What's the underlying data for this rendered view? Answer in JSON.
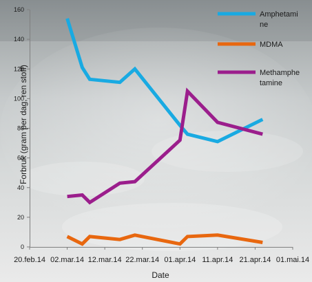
{
  "chart_data": {
    "type": "line",
    "xlabel": "Date",
    "ylabel": "Forbruk (gram per dag, ren stoff)",
    "x_ticks": [
      "20.feb.14",
      "02.mar.14",
      "12.mar.14",
      "22.mar.14",
      "01.apr.14",
      "11.apr.14",
      "21.apr.14",
      "01.mai.14"
    ],
    "y_ticks": [
      0,
      20,
      40,
      60,
      80,
      100,
      120,
      140,
      160
    ],
    "ylim": [
      0,
      160
    ],
    "grid": false,
    "legend_position": "top-right",
    "series": [
      {
        "name": "Amphetamine",
        "legend_lines": [
          "Amphetami",
          "ne"
        ],
        "color": "#19aae2",
        "points": [
          {
            "x": "2014-03-02",
            "y": 154
          },
          {
            "x": "2014-03-06",
            "y": 121
          },
          {
            "x": "2014-03-08",
            "y": 113
          },
          {
            "x": "2014-03-16",
            "y": 111
          },
          {
            "x": "2014-03-20",
            "y": 120
          },
          {
            "x": "2014-04-01",
            "y": 82
          },
          {
            "x": "2014-04-03",
            "y": 76
          },
          {
            "x": "2014-04-11",
            "y": 71
          },
          {
            "x": "2014-04-23",
            "y": 86
          }
        ]
      },
      {
        "name": "MDMA",
        "legend_lines": [
          "MDMA"
        ],
        "color": "#e8670f",
        "points": [
          {
            "x": "2014-03-02",
            "y": 7
          },
          {
            "x": "2014-03-06",
            "y": 2
          },
          {
            "x": "2014-03-08",
            "y": 7
          },
          {
            "x": "2014-03-16",
            "y": 5
          },
          {
            "x": "2014-03-20",
            "y": 8
          },
          {
            "x": "2014-04-01",
            "y": 2
          },
          {
            "x": "2014-04-03",
            "y": 7
          },
          {
            "x": "2014-04-11",
            "y": 8
          },
          {
            "x": "2014-04-23",
            "y": 3
          }
        ]
      },
      {
        "name": "Methamphetamine",
        "legend_lines": [
          "Methamphe",
          "tamine"
        ],
        "color": "#9b1e8c",
        "points": [
          {
            "x": "2014-03-02",
            "y": 34
          },
          {
            "x": "2014-03-06",
            "y": 35
          },
          {
            "x": "2014-03-08",
            "y": 30
          },
          {
            "x": "2014-03-16",
            "y": 43
          },
          {
            "x": "2014-03-20",
            "y": 44
          },
          {
            "x": "2014-04-01",
            "y": 72
          },
          {
            "x": "2014-04-03",
            "y": 105
          },
          {
            "x": "2014-04-11",
            "y": 84
          },
          {
            "x": "2014-04-23",
            "y": 76
          }
        ]
      }
    ]
  }
}
